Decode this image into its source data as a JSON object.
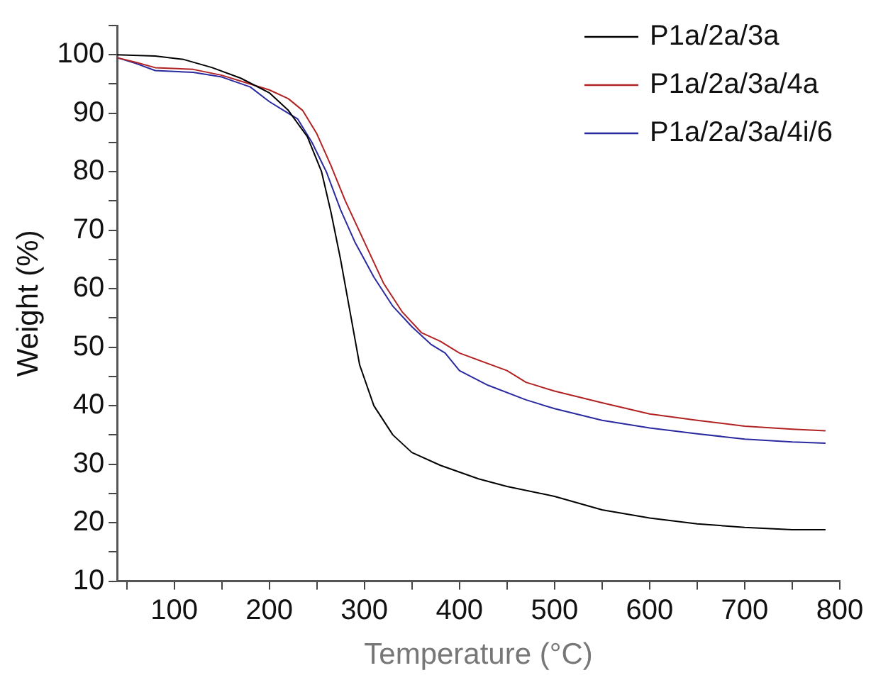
{
  "chart_data": {
    "type": "line",
    "xlabel": "Temperature (°C)",
    "ylabel": "Weight (%)",
    "xlim": [
      40,
      800
    ],
    "ylim": [
      10,
      105
    ],
    "xticks": [
      {
        "value": 50,
        "label": null
      },
      100,
      {
        "value": 150,
        "label": null
      },
      200,
      {
        "value": 250,
        "label": null
      },
      300,
      {
        "value": 350,
        "label": null
      },
      400,
      {
        "value": 450,
        "label": null
      },
      500,
      {
        "value": 550,
        "label": null
      },
      600,
      {
        "value": 650,
        "label": null
      },
      700,
      {
        "value": 750,
        "label": null
      },
      800
    ],
    "yticks": [
      10,
      {
        "value": 15,
        "label": null
      },
      20,
      {
        "value": 25,
        "label": null
      },
      30,
      {
        "value": 35,
        "label": null
      },
      40,
      {
        "value": 45,
        "label": null
      },
      50,
      {
        "value": 55,
        "label": null
      },
      60,
      {
        "value": 65,
        "label": null
      },
      70,
      {
        "value": 75,
        "label": null
      },
      80,
      {
        "value": 85,
        "label": null
      },
      90,
      {
        "value": 95,
        "label": null
      },
      100,
      {
        "value": 105,
        "label": null
      }
    ],
    "grid": false,
    "legend": "top right",
    "marker": "none",
    "line_style": "solid",
    "x": [
      40,
      80,
      110,
      140,
      170,
      200,
      220,
      240,
      255,
      265,
      275,
      285,
      295,
      310,
      330,
      350,
      380,
      420,
      450,
      500,
      550,
      600,
      650,
      700,
      750,
      785
    ],
    "series": [
      {
        "name": "P1a/2a/3a",
        "color": "#000000",
        "values": [
          100,
          99.8,
          99.2,
          97.8,
          96,
          93.5,
          90.5,
          86,
          80,
          73,
          65,
          56,
          47,
          40,
          35,
          32,
          29.8,
          27.5,
          26.2,
          24.5,
          22.2,
          20.8,
          19.8,
          19.2,
          18.8,
          18.8
        ]
      },
      {
        "name": "P1a/2a/3a/4a",
        "color": "#b22222",
        "x": [
          40,
          60,
          80,
          120,
          150,
          180,
          200,
          220,
          235,
          250,
          265,
          280,
          300,
          320,
          340,
          360,
          380,
          400,
          450,
          470,
          500,
          550,
          600,
          650,
          700,
          750,
          785
        ],
        "values": [
          99.5,
          98.7,
          97.8,
          97.5,
          96.5,
          95,
          94,
          92.5,
          90.5,
          86.5,
          81,
          75,
          68,
          61,
          56,
          52.5,
          51,
          49,
          46,
          44,
          42.5,
          40.5,
          38.6,
          37.5,
          36.5,
          36,
          35.7
        ]
      },
      {
        "name": "P1a/2a/3a/4i/6",
        "color": "#2a2aa0",
        "x": [
          40,
          60,
          80,
          120,
          150,
          180,
          200,
          215,
          230,
          245,
          260,
          275,
          290,
          310,
          330,
          350,
          370,
          385,
          400,
          430,
          470,
          500,
          550,
          600,
          650,
          700,
          750,
          785
        ],
        "values": [
          99.5,
          98.5,
          97.3,
          97,
          96.2,
          94.5,
          92,
          90.5,
          89,
          85,
          80,
          73.5,
          68,
          62,
          57,
          53.5,
          50.5,
          49,
          46,
          43.5,
          41,
          39.5,
          37.5,
          36.2,
          35.2,
          34.3,
          33.8,
          33.6
        ]
      }
    ]
  }
}
